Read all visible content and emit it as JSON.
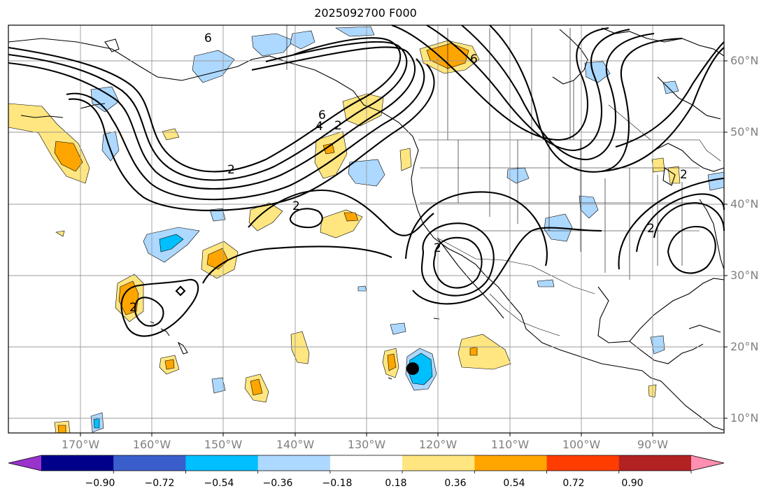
{
  "title": "2025092700 F000",
  "latitude_labels": [
    "60°N",
    "50°N",
    "40°N",
    "30°N",
    "20°N",
    "10°N"
  ],
  "longitude_labels": [
    "170°W",
    "160°W",
    "150°W",
    "140°W",
    "130°W",
    "120°W",
    "110°W",
    "100°W",
    "90°W"
  ],
  "contour_labels": [
    "6",
    "6",
    "6",
    "4",
    "2",
    "2",
    "2",
    "2",
    "2",
    "2",
    "2"
  ],
  "colorbar": {
    "tick_labels": [
      "−0.90",
      "−0.72",
      "−0.54",
      "−0.36",
      "−0.18",
      "0.18",
      "0.36",
      "0.54",
      "0.72",
      "0.90"
    ],
    "colors": [
      "#9933cc",
      "#00008b",
      "#3a5fcd",
      "#00bfff",
      "#add8ff",
      "#ffffff",
      "#ffe680",
      "#ffa500",
      "#ff3d00",
      "#b22222",
      "#ff8fb0"
    ]
  },
  "storm_marker": {
    "lon": -123.5,
    "lat": 17.0
  }
}
